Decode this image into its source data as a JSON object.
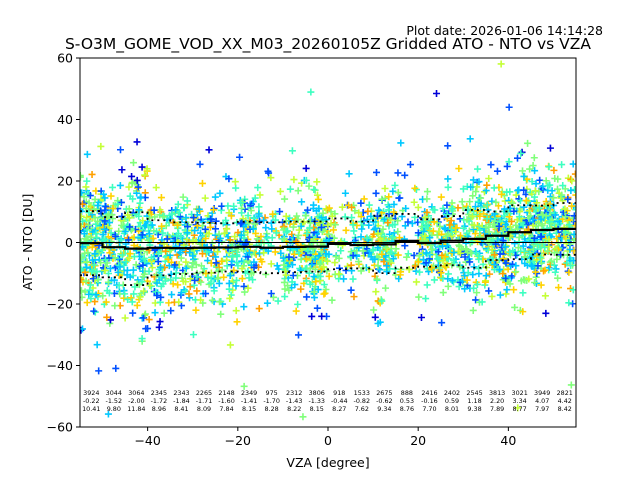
{
  "chart_data": {
    "type": "scatter",
    "title": "S-O3M_GOME_VOD_XX_M03_20260105Z Gridded ATO - NTO vs VZA",
    "subtitle": "Plot date: 2026-01-06 14:14:28",
    "xlabel": "VZA [degree]",
    "ylabel": "ATO - NTO [DU]",
    "xlim": [
      -55,
      55
    ],
    "ylim": [
      -60,
      60
    ],
    "xticks": [
      -40,
      -20,
      0,
      20,
      40
    ],
    "xtick_labels": [
      "−40",
      "−20",
      "0",
      "20",
      "40"
    ],
    "yticks": [
      -60,
      -40,
      -20,
      0,
      20,
      40,
      60
    ],
    "ytick_labels": [
      "−60",
      "−40",
      "−20",
      "0",
      "20",
      "40",
      "60"
    ],
    "grid": false,
    "legend": null,
    "colormap": "jet",
    "marker": "+",
    "zero_line": 0,
    "bin_width": 5,
    "bins": {
      "x_start": [
        -55,
        -50,
        -45,
        -40,
        -35,
        -30,
        -25,
        -20,
        -15,
        -10,
        -5,
        0,
        5,
        10,
        15,
        20,
        25,
        30,
        35,
        40,
        45,
        50
      ],
      "count": [
        3924,
        3044,
        3064,
        2345,
        2343,
        2265,
        2148,
        2349,
        975,
        2312,
        3806,
        918,
        1533,
        2675,
        888,
        2416,
        2402,
        2545,
        3813,
        3021,
        3949,
        2821
      ],
      "mean": [
        -0.22,
        -1.52,
        -2.0,
        -1.72,
        -1.84,
        -1.71,
        -1.6,
        -1.41,
        -1.7,
        -1.43,
        -1.33,
        -0.44,
        -0.82,
        -0.62,
        0.53,
        -0.16,
        0.59,
        1.18,
        2.2,
        3.34,
        4.07,
        4.42
      ],
      "std": [
        10.41,
        9.8,
        11.84,
        8.96,
        8.41,
        8.09,
        7.84,
        8.15,
        8.28,
        8.22,
        8.15,
        8.27,
        7.62,
        9.34,
        8.76,
        7.7,
        8.01,
        9.38,
        7.89,
        8.77,
        7.97,
        8.42
      ],
      "count_labels": [
        "3924",
        "3044",
        "3064",
        "2345",
        "2343",
        "2265",
        "2148",
        "2349",
        "975",
        "2312",
        "3806",
        "918",
        "1533",
        "2675",
        "888",
        "2416",
        "2402",
        "2545",
        "3813",
        "3021",
        "3949",
        "2821"
      ],
      "mean_labels": [
        "-0.22",
        "-1.52",
        "-2.00",
        "-1.72",
        "-1.84",
        "-1.71",
        "-1.60",
        "-1.41",
        "-1.70",
        "-1.43",
        "-1.33",
        "-0.44",
        "-0.82",
        "-0.62",
        "0.53",
        "-0.16",
        "0.59",
        "1.18",
        "2.20",
        "3.34",
        "4.07",
        "4.42"
      ],
      "std_labels": [
        "10.41",
        "9.80",
        "11.84",
        "8.96",
        "8.41",
        "8.09",
        "7.84",
        "8.15",
        "8.28",
        "8.22",
        "8.15",
        "8.27",
        "7.62",
        "9.34",
        "8.76",
        "7.70",
        "8.01",
        "9.38",
        "7.89",
        "8.77",
        "7.97",
        "8.42"
      ]
    },
    "series": [
      {
        "name": "gridded ATO - NTO",
        "kind": "scatter",
        "colors": [
          "#0000d8",
          "#0050ff",
          "#00c8ff",
          "#3dffc0",
          "#80ff7a",
          "#c4ff36",
          "#ffd200",
          "#ffa000"
        ]
      },
      {
        "name": "bin mean",
        "kind": "step",
        "color": "#000000"
      },
      {
        "name": "bin mean +/- std",
        "kind": "dotted-step",
        "color": "#000000"
      }
    ]
  }
}
